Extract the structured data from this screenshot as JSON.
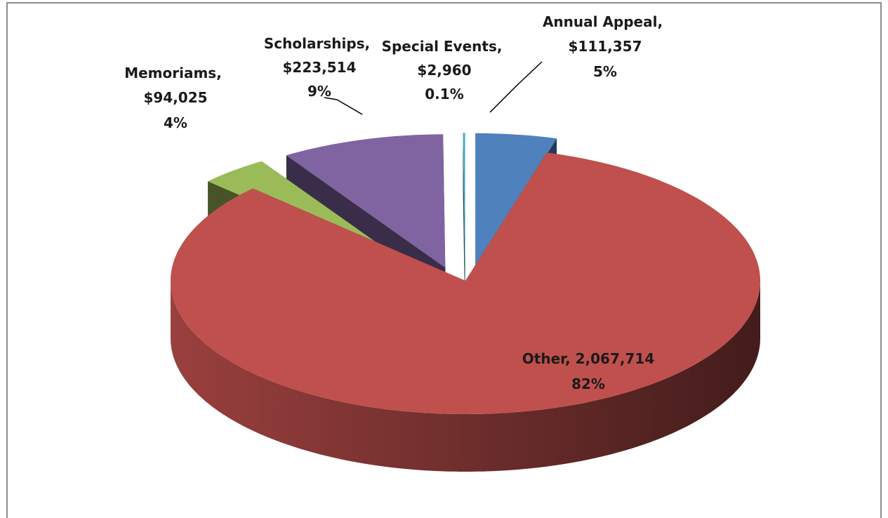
{
  "chart_data": {
    "type": "pie3d",
    "categories": [
      "Annual Appeal",
      "Other",
      "Memoriams",
      "Scholarships",
      "Special Events"
    ],
    "values": [
      111357,
      2067714,
      94025,
      223514,
      2960
    ],
    "value_labels": [
      "$111,357",
      "2,067,714",
      "$94,025",
      "$223,514",
      "$2,960"
    ],
    "percentages": [
      5,
      82,
      4,
      9,
      0.1
    ],
    "percentage_labels": [
      "5%",
      "82%",
      "4%",
      "9%",
      "0.1%"
    ],
    "label_separator": ", ",
    "colors": [
      "#4f81bd",
      "#c0504d",
      "#9bbb59",
      "#8064a2",
      "#4bacc6"
    ]
  }
}
